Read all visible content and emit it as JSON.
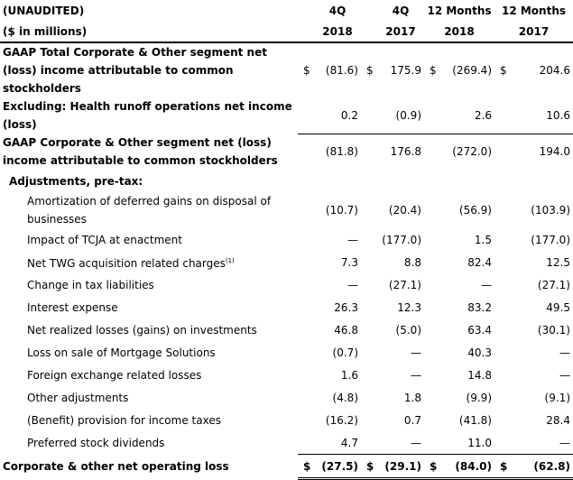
{
  "header": {
    "row1": {
      "label": "(UNAUDITED)",
      "c1": "4Q",
      "c2": "4Q",
      "c3": "12 Months",
      "c4": "12 Months"
    },
    "row2": {
      "label": "($ in millions)",
      "c1": "2018",
      "c2": "2017",
      "c3": "2018",
      "c4": "2017"
    }
  },
  "rows": {
    "gaap_total": {
      "label": "GAAP Total Corporate & Other segment net (loss) income attributable to common stockholders",
      "cur": "$",
      "v1": "(81.6)",
      "v2": "175.9",
      "v3": "(269.4)",
      "v4": "204.6"
    },
    "excl_health": {
      "label": "Excluding: Health runoff operations net income (loss)",
      "v1": "0.2",
      "v2": "(0.9)",
      "v3": "2.6",
      "v4": "10.6"
    },
    "gaap_corp": {
      "label": "GAAP Corporate & Other segment net (loss) income attributable to common stockholders",
      "v1": "(81.8)",
      "v2": "176.8",
      "v3": "(272.0)",
      "v4": "194.0"
    },
    "adj_header": {
      "label": "Adjustments, pre-tax:"
    },
    "amortization": {
      "label": "Amortization of deferred gains on disposal of businesses",
      "v1": "(10.7)",
      "v2": "(20.4)",
      "v3": "(56.9)",
      "v4": "(103.9)"
    },
    "tcja": {
      "label": "Impact of TCJA at enactment",
      "v1": "—",
      "v2": "(177.0)",
      "v3": "1.5",
      "v4": "(177.0)"
    },
    "twg": {
      "label": "Net TWG acquisition related charges",
      "sup": "(1)",
      "v1": "7.3",
      "v2": "8.8",
      "v3": "82.4",
      "v4": "12.5"
    },
    "tax_liab": {
      "label": "Change in tax liabilities",
      "v1": "—",
      "v2": "(27.1)",
      "v3": "—",
      "v4": "(27.1)"
    },
    "interest": {
      "label": "Interest expense",
      "v1": "26.3",
      "v2": "12.3",
      "v3": "83.2",
      "v4": "49.5"
    },
    "realized": {
      "label": "Net realized losses (gains) on investments",
      "v1": "46.8",
      "v2": "(5.0)",
      "v3": "63.4",
      "v4": "(30.1)"
    },
    "mortgage": {
      "label": "Loss on sale of Mortgage Solutions",
      "v1": "(0.7)",
      "v2": "—",
      "v3": "40.3",
      "v4": "—"
    },
    "fx": {
      "label": "Foreign exchange related losses",
      "v1": "1.6",
      "v2": "—",
      "v3": "14.8",
      "v4": "—"
    },
    "other": {
      "label": "Other adjustments",
      "v1": "(4.8)",
      "v2": "1.8",
      "v3": "(9.9)",
      "v4": "(9.1)"
    },
    "tax_prov": {
      "label": "(Benefit) provision for income taxes",
      "v1": "(16.2)",
      "v2": "0.7",
      "v3": "(41.8)",
      "v4": "28.4"
    },
    "pref_div": {
      "label": "Preferred stock dividends",
      "v1": "4.7",
      "v2": "—",
      "v3": "11.0",
      "v4": "—"
    },
    "total": {
      "label": "Corporate & other net operating loss",
      "cur": "$",
      "v1": "(27.5)",
      "v2": "(29.1)",
      "v3": "(84.0)",
      "v4": "(62.8)"
    }
  }
}
